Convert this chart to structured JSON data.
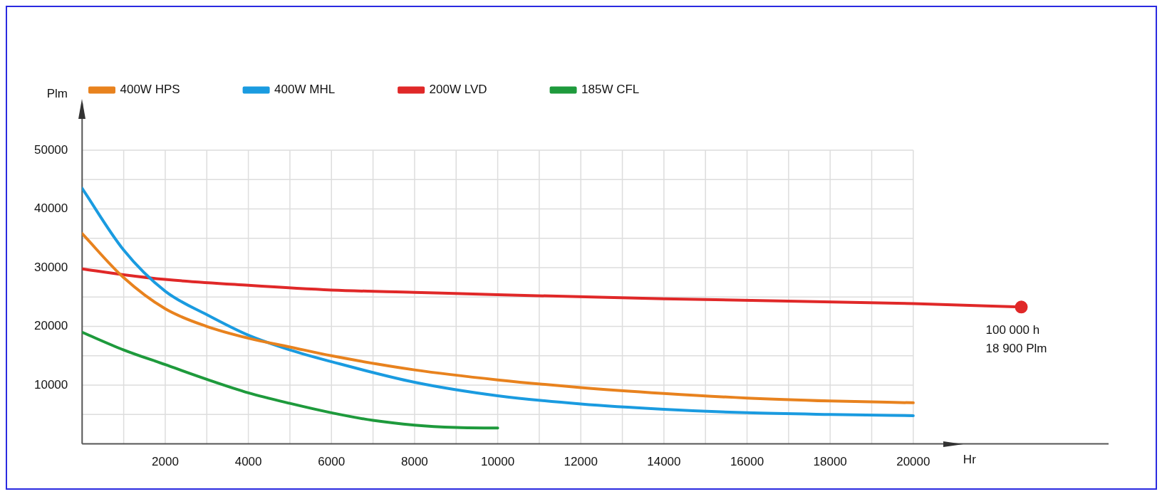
{
  "chart_data": {
    "type": "line",
    "xlabel": "Hr",
    "ylabel": "Plm",
    "xlim": [
      0,
      24700
    ],
    "ylim": [
      0,
      58000
    ],
    "xticks": [
      {
        "value": 1000,
        "label": null
      },
      2000,
      {
        "value": 3000,
        "label": null
      },
      4000,
      {
        "value": 5000,
        "label": null
      },
      6000,
      {
        "value": 7000,
        "label": null
      },
      8000,
      {
        "value": 9000,
        "label": null
      },
      10000,
      {
        "value": 11000,
        "label": null
      },
      12000,
      {
        "value": 13000,
        "label": null
      },
      14000,
      {
        "value": 15000,
        "label": null
      },
      16000,
      {
        "value": 17000,
        "label": null
      },
      18000,
      {
        "value": 19000,
        "label": null
      },
      20000
    ],
    "yticks": [
      {
        "value": 5000,
        "label": null
      },
      10000,
      {
        "value": 15000,
        "label": null
      },
      20000,
      {
        "value": 25000,
        "label": null
      },
      30000,
      {
        "value": 35000,
        "label": null
      },
      40000,
      {
        "value": 45000,
        "label": null
      },
      50000
    ],
    "grid": true,
    "legend": "top",
    "line_style": "solid",
    "series": [
      {
        "name": "400W HPS",
        "color": "#e8821e",
        "x": [
          0,
          1000,
          2000,
          3000,
          4000,
          5000,
          6000,
          8000,
          10000,
          12000,
          14000,
          16000,
          18000,
          20000
        ],
        "values": [
          35800,
          28300,
          23000,
          20000,
          18000,
          16500,
          15000,
          12600,
          10900,
          9600,
          8600,
          7800,
          7300,
          7000
        ]
      },
      {
        "name": "400W MHL",
        "color": "#1a9be0",
        "x": [
          0,
          1000,
          2000,
          3000,
          4000,
          5000,
          6000,
          8000,
          10000,
          12000,
          14000,
          16000,
          18000,
          20000
        ],
        "values": [
          43500,
          33000,
          26000,
          22000,
          18500,
          16000,
          14000,
          10500,
          8200,
          6800,
          5900,
          5300,
          5000,
          4800
        ]
      },
      {
        "name": "200W LVD",
        "color": "#e02828",
        "x": [
          0,
          1000,
          2000,
          4000,
          6000,
          8000,
          10000,
          14000,
          20000,
          22600
        ],
        "values": [
          29800,
          28800,
          28000,
          27000,
          26200,
          25800,
          25400,
          24700,
          23900,
          23300
        ]
      },
      {
        "name": "185W CFL",
        "color": "#1e9a3c",
        "x": [
          0,
          1000,
          2000,
          3000,
          4000,
          5000,
          6000,
          7000,
          8000,
          9000,
          10000
        ],
        "values": [
          19000,
          16000,
          13500,
          11000,
          8700,
          6900,
          5300,
          4000,
          3200,
          2800,
          2700
        ]
      },
      {
        "type": "scatter",
        "color": "#e02828",
        "marker": "circle",
        "x": [
          22600
        ],
        "values": [
          23300
        ]
      }
    ],
    "annotations": [
      "100 000 h",
      "18 900 Plm"
    ]
  }
}
